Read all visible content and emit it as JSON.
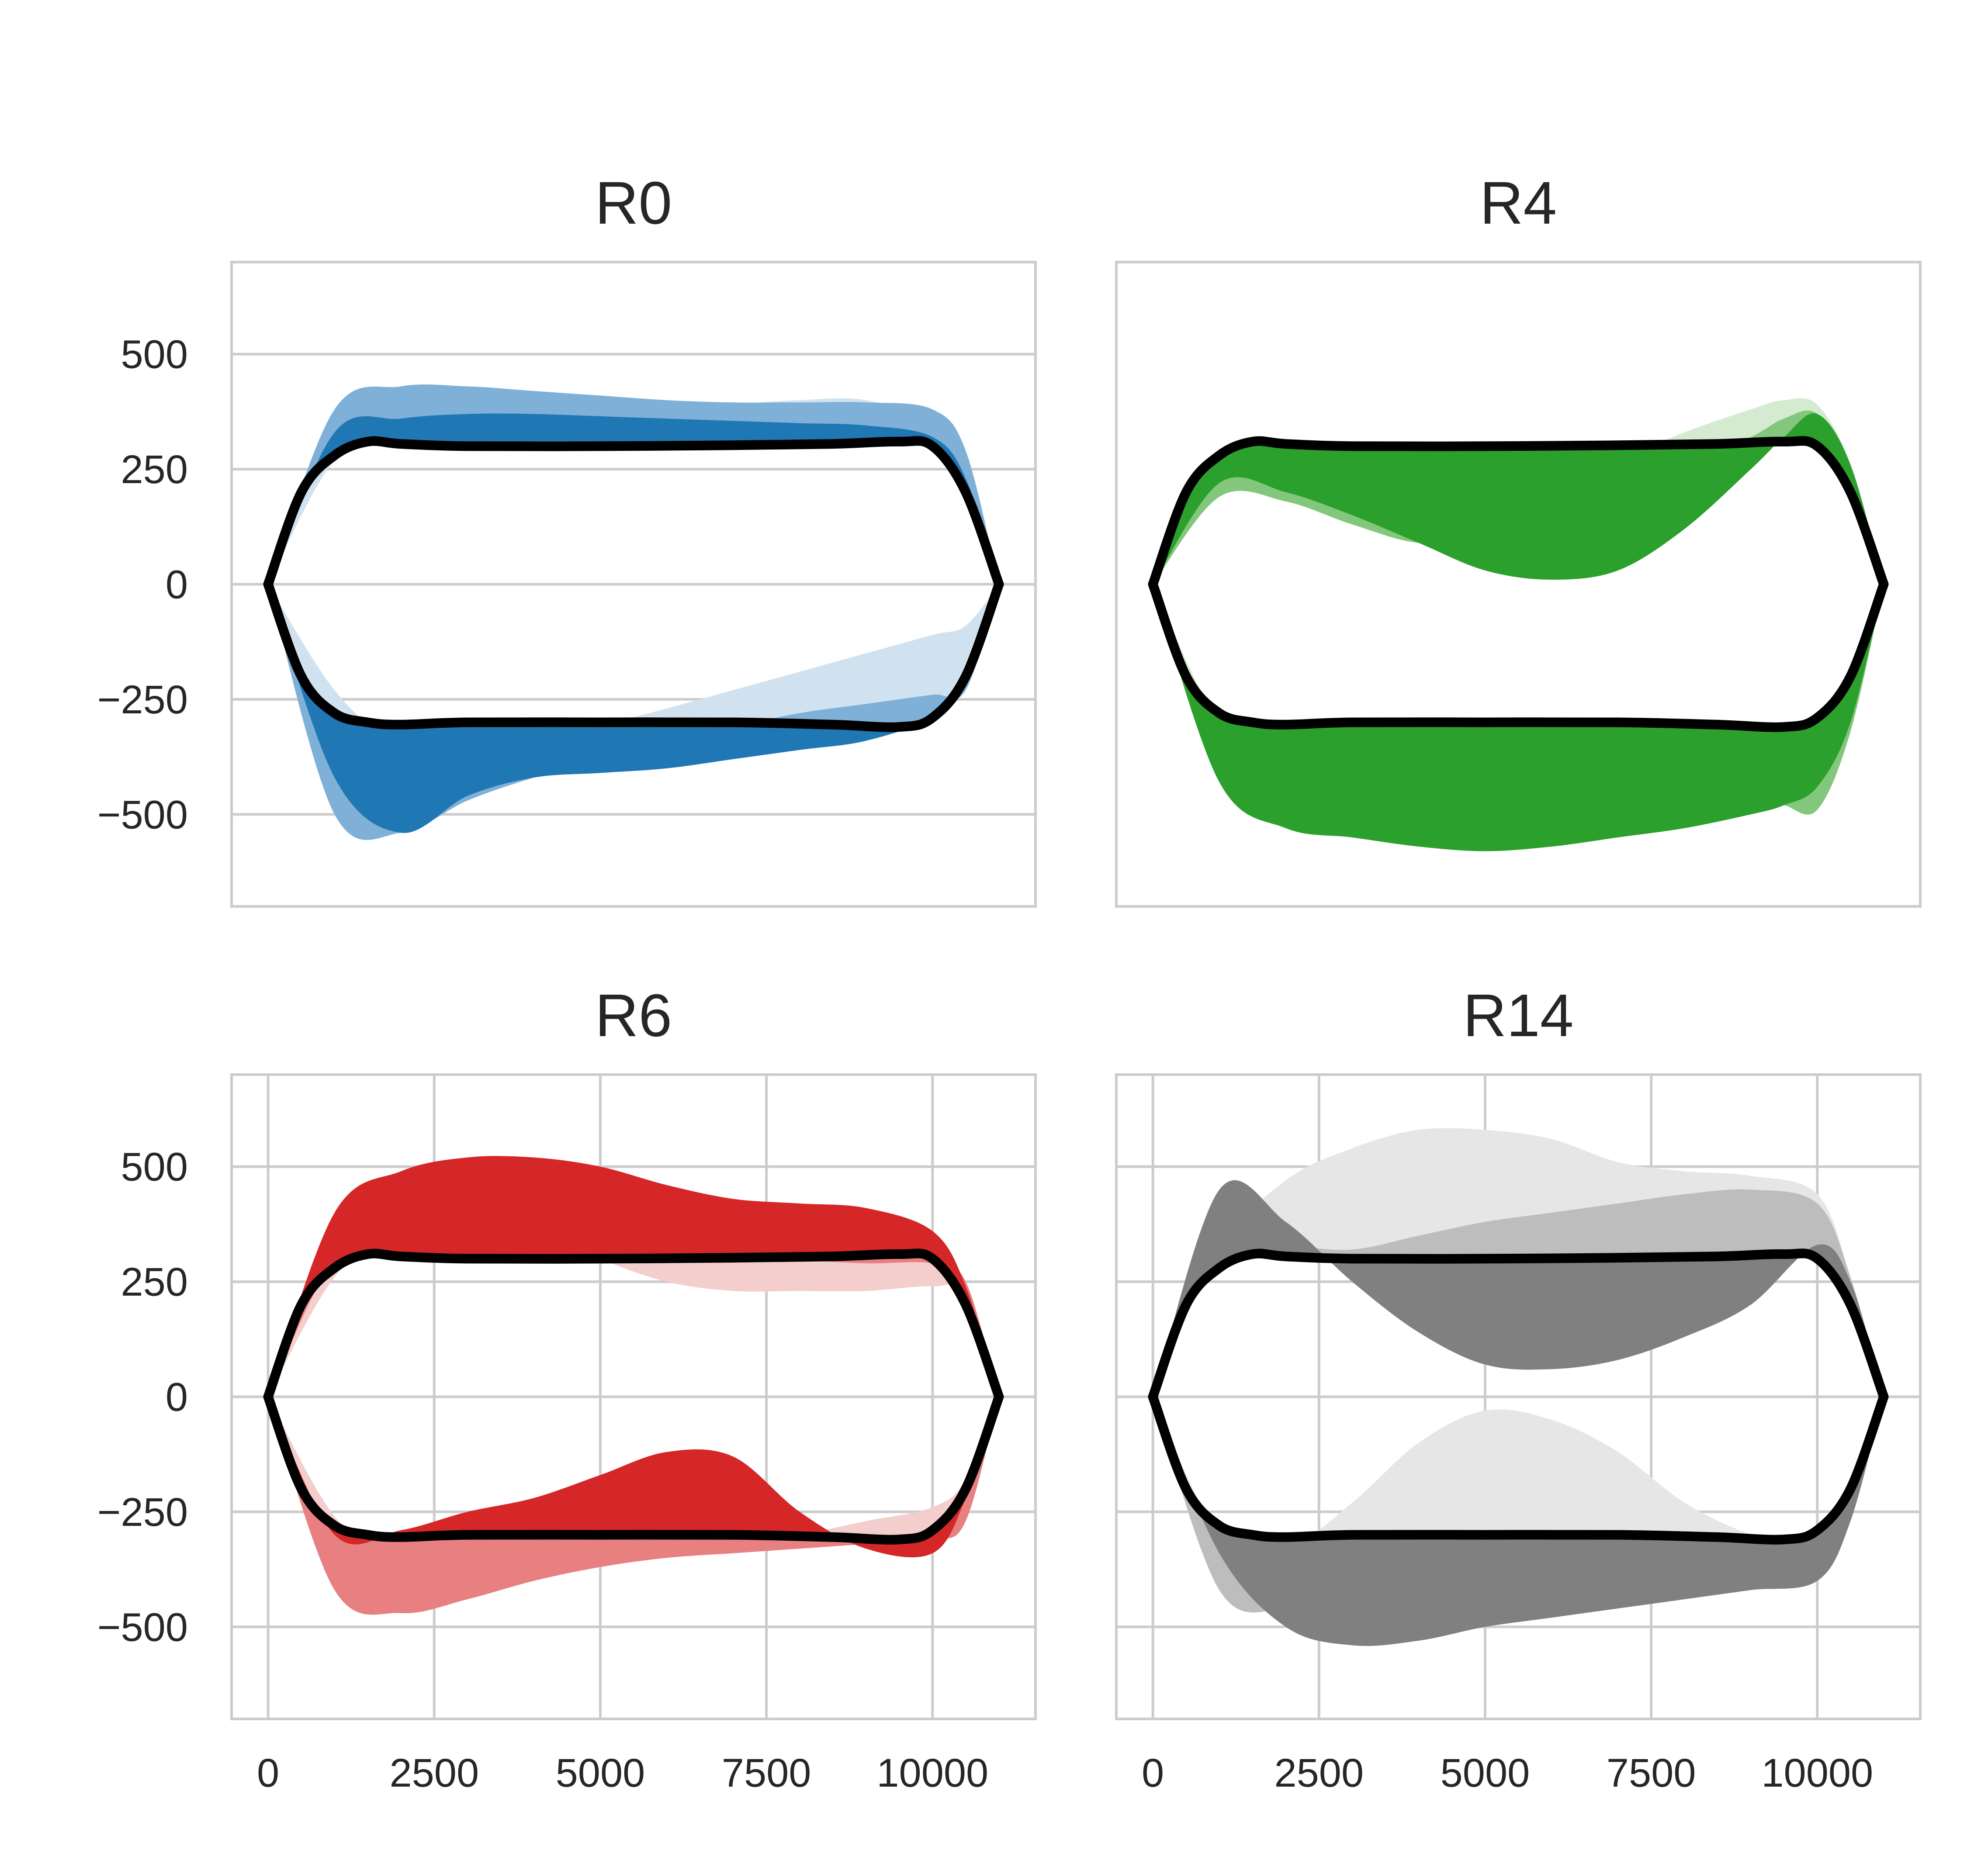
{
  "figure": {
    "colors": {
      "gridline": "#cccccc",
      "frame": "#cccccc",
      "band_outline_reference": "#000000",
      "text": "#262626"
    }
  },
  "chart_data": [
    {
      "type": "area",
      "title": "R0",
      "xlim": [
        -550,
        11550
      ],
      "ylim": [
        -700,
        700
      ],
      "xticks": [],
      "yticks": [
        -500,
        -250,
        0,
        250,
        500
      ],
      "ytick_labels": [
        "−500",
        "−250",
        "0",
        "250",
        "500"
      ],
      "xtick_labels": [],
      "grid": {
        "x": false,
        "y": true
      },
      "series": [
        {
          "color": "#d0e2ef",
          "x": [
            0,
            1000,
            2000,
            3000,
            4000,
            5000,
            6000,
            7000,
            8000,
            9000,
            10000,
            10500,
            11000
          ],
          "upper": [
            0,
            270,
            330,
            330,
            340,
            350,
            370,
            390,
            400,
            400,
            350,
            240,
            0
          ],
          "lower": [
            0,
            -230,
            -360,
            -420,
            -370,
            -310,
            -270,
            -230,
            -190,
            -150,
            -110,
            -90,
            0
          ]
        },
        {
          "color": "#7fb0d7",
          "x": [
            0,
            1000,
            2000,
            3000,
            4000,
            5000,
            6000,
            7000,
            8000,
            9000,
            10000,
            10500,
            11000
          ],
          "upper": [
            0,
            380,
            430,
            430,
            420,
            410,
            400,
            395,
            395,
            395,
            380,
            290,
            0
          ],
          "lower": [
            0,
            -500,
            -540,
            -470,
            -420,
            -380,
            -340,
            -310,
            -280,
            -260,
            -240,
            -230,
            0
          ]
        },
        {
          "color": "#1f77b4",
          "x": [
            0,
            1000,
            2000,
            3000,
            4000,
            5000,
            6000,
            7000,
            8000,
            9000,
            10000,
            10500,
            11000
          ],
          "upper": [
            0,
            330,
            360,
            370,
            370,
            365,
            360,
            355,
            350,
            345,
            320,
            230,
            0
          ],
          "lower": [
            0,
            -420,
            -540,
            -460,
            -420,
            -410,
            -400,
            -380,
            -360,
            -340,
            -290,
            -220,
            0
          ]
        }
      ],
      "reference_loop": {
        "color": "#000000",
        "x": [
          0,
          500,
          1000,
          1500,
          2000,
          3000,
          5000,
          7000,
          8500,
          9500,
          10000,
          10500,
          11000
        ],
        "upper": [
          0,
          200,
          280,
          310,
          305,
          300,
          300,
          302,
          305,
          310,
          300,
          200,
          0
        ],
        "lower": [
          0,
          -200,
          -280,
          -300,
          -305,
          -300,
          -300,
          -300,
          -305,
          -310,
          -290,
          -200,
          0
        ]
      }
    },
    {
      "type": "area",
      "title": "R4",
      "xlim": [
        -550,
        11550
      ],
      "ylim": [
        -700,
        700
      ],
      "xticks": [],
      "yticks": [],
      "xtick_labels": [],
      "ytick_labels": [],
      "grid": {
        "x": false,
        "y": false
      },
      "series": [
        {
          "color": "#d4ebd0",
          "x": [
            0,
            1000,
            2000,
            3000,
            4000,
            5000,
            6000,
            7000,
            8000,
            9000,
            9500,
            10000,
            10500,
            11000
          ],
          "upper": [
            0,
            200,
            230,
            200,
            180,
            190,
            220,
            270,
            330,
            380,
            400,
            390,
            260,
            0
          ],
          "lower": [
            0,
            -300,
            -380,
            -410,
            -420,
            -400,
            -380,
            -360,
            -370,
            -400,
            -420,
            -450,
            -300,
            0
          ]
        },
        {
          "color": "#82c77b",
          "x": [
            0,
            1000,
            2000,
            3000,
            4000,
            5000,
            6000,
            7000,
            8000,
            9000,
            9500,
            10000,
            10500,
            11000
          ],
          "upper": [
            0,
            190,
            180,
            130,
            90,
            100,
            140,
            200,
            260,
            320,
            360,
            370,
            250,
            0
          ],
          "lower": [
            0,
            -340,
            -480,
            -520,
            -500,
            -470,
            -440,
            -420,
            -430,
            -460,
            -480,
            -490,
            -320,
            0
          ]
        },
        {
          "color": "#2ca02c",
          "x": [
            0,
            1000,
            2000,
            3000,
            4000,
            5000,
            6000,
            7000,
            8000,
            9000,
            9500,
            10000,
            10500,
            11000
          ],
          "upper": [
            0,
            220,
            200,
            150,
            90,
            30,
            10,
            30,
            120,
            250,
            320,
            370,
            260,
            0
          ],
          "lower": [
            0,
            -430,
            -530,
            -550,
            -570,
            -580,
            -570,
            -550,
            -530,
            -500,
            -480,
            -440,
            -300,
            0
          ]
        }
      ],
      "reference_loop": {
        "color": "#000000",
        "x": [
          0,
          500,
          1000,
          1500,
          2000,
          3000,
          5000,
          7000,
          8500,
          9500,
          10000,
          10500,
          11000
        ],
        "upper": [
          0,
          200,
          280,
          310,
          305,
          300,
          300,
          302,
          305,
          310,
          300,
          200,
          0
        ],
        "lower": [
          0,
          -200,
          -280,
          -300,
          -305,
          -300,
          -300,
          -300,
          -305,
          -310,
          -290,
          -200,
          0
        ]
      }
    },
    {
      "type": "area",
      "title": "R6",
      "xlim": [
        -550,
        11550
      ],
      "ylim": [
        -700,
        700
      ],
      "xticks": [
        0,
        2500,
        5000,
        7500,
        10000
      ],
      "xtick_labels": [
        "0",
        "2500",
        "5000",
        "7500",
        "10000"
      ],
      "yticks": [
        -500,
        -250,
        0,
        250,
        500
      ],
      "ytick_labels": [
        "−500",
        "−250",
        "0",
        "250",
        "500"
      ],
      "grid": {
        "x": true,
        "y": true
      },
      "series": [
        {
          "color": "#f4cdcd",
          "x": [
            0,
            1000,
            2000,
            3000,
            4000,
            5000,
            6000,
            7000,
            8000,
            9000,
            10000,
            10500,
            11000
          ],
          "upper": [
            0,
            260,
            360,
            390,
            370,
            300,
            250,
            230,
            230,
            230,
            240,
            220,
            0
          ],
          "lower": [
            0,
            -260,
            -360,
            -380,
            -380,
            -360,
            -340,
            -320,
            -300,
            -270,
            -240,
            -180,
            0
          ]
        },
        {
          "color": "#e87f80",
          "x": [
            0,
            1000,
            2000,
            3000,
            4000,
            5000,
            6000,
            7000,
            8000,
            9000,
            10000,
            10500,
            11000
          ],
          "upper": [
            0,
            300,
            360,
            400,
            450,
            400,
            370,
            330,
            300,
            290,
            290,
            250,
            0
          ],
          "lower": [
            0,
            -420,
            -470,
            -440,
            -400,
            -370,
            -350,
            -340,
            -330,
            -320,
            -310,
            -270,
            0
          ]
        },
        {
          "color": "#d62728",
          "x": [
            0,
            1000,
            2000,
            3000,
            4000,
            5000,
            6000,
            7000,
            8000,
            9000,
            10000,
            10500,
            11000
          ],
          "upper": [
            0,
            400,
            490,
            520,
            520,
            500,
            460,
            430,
            420,
            410,
            360,
            240,
            0
          ],
          "lower": [
            0,
            -300,
            -290,
            -250,
            -220,
            -170,
            -120,
            -130,
            -250,
            -330,
            -340,
            -220,
            0
          ]
        }
      ],
      "reference_loop": {
        "color": "#000000",
        "x": [
          0,
          500,
          1000,
          1500,
          2000,
          3000,
          5000,
          7000,
          8500,
          9500,
          10000,
          10500,
          11000
        ],
        "upper": [
          0,
          200,
          280,
          310,
          305,
          300,
          300,
          302,
          305,
          310,
          300,
          200,
          0
        ],
        "lower": [
          0,
          -200,
          -280,
          -300,
          -305,
          -300,
          -300,
          -300,
          -305,
          -310,
          -290,
          -200,
          0
        ]
      }
    },
    {
      "type": "area",
      "title": "R14",
      "xlim": [
        -550,
        11550
      ],
      "ylim": [
        -700,
        700
      ],
      "xticks": [
        0,
        2500,
        5000,
        7500,
        10000
      ],
      "xtick_labels": [
        "0",
        "2500",
        "5000",
        "7500",
        "10000"
      ],
      "yticks": [],
      "ytick_labels": [],
      "grid": {
        "x": true,
        "y": true
      },
      "series": [
        {
          "color": "#e6e6e6",
          "x": [
            0,
            1000,
            2000,
            3000,
            4000,
            5000,
            6000,
            7000,
            8000,
            9000,
            10000,
            10500,
            11000
          ],
          "upper": [
            0,
            320,
            470,
            540,
            580,
            580,
            560,
            510,
            490,
            480,
            440,
            260,
            0
          ],
          "lower": [
            0,
            -300,
            -330,
            -230,
            -100,
            -30,
            -50,
            -120,
            -230,
            -300,
            -340,
            -260,
            0
          ]
        },
        {
          "color": "#bdbdbd",
          "x": [
            0,
            1000,
            2000,
            3000,
            4000,
            5000,
            6000,
            7000,
            8000,
            9000,
            10000,
            10500,
            11000
          ],
          "upper": [
            0,
            350,
            330,
            320,
            350,
            380,
            400,
            420,
            440,
            450,
            420,
            260,
            0
          ],
          "lower": [
            0,
            -420,
            -460,
            -420,
            -370,
            -350,
            -330,
            -320,
            -330,
            -340,
            -360,
            -240,
            0
          ]
        },
        {
          "color": "#808080",
          "x": [
            0,
            1000,
            2000,
            3000,
            4000,
            5000,
            6000,
            7000,
            8000,
            9000,
            10000,
            10500,
            11000
          ],
          "upper": [
            0,
            450,
            380,
            250,
            140,
            70,
            60,
            80,
            130,
            200,
            330,
            250,
            0
          ],
          "lower": [
            0,
            -340,
            -500,
            -540,
            -530,
            -500,
            -480,
            -460,
            -440,
            -420,
            -400,
            -270,
            0
          ]
        }
      ],
      "reference_loop": {
        "color": "#000000",
        "x": [
          0,
          500,
          1000,
          1500,
          2000,
          3000,
          5000,
          7000,
          8500,
          9500,
          10000,
          10500,
          11000
        ],
        "upper": [
          0,
          200,
          280,
          310,
          305,
          300,
          300,
          302,
          305,
          310,
          300,
          200,
          0
        ],
        "lower": [
          0,
          -200,
          -280,
          -300,
          -305,
          -300,
          -300,
          -300,
          -305,
          -310,
          -290,
          -200,
          0
        ]
      }
    }
  ]
}
